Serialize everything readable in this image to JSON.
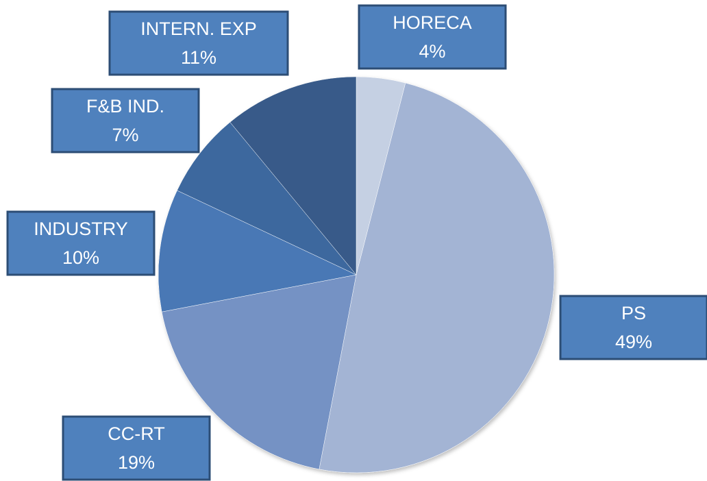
{
  "chart_data": {
    "type": "pie",
    "categories": [
      "HORECA",
      "PS",
      "CC-RT",
      "INDUSTRY",
      "F&B IND.",
      "INTERN. EXP"
    ],
    "values": [
      4,
      49,
      19,
      10,
      7,
      11
    ],
    "value_labels": [
      "4%",
      "49%",
      "19%",
      "10%",
      "7%",
      "11%"
    ],
    "colors": [
      "#c5d0e3",
      "#a3b4d4",
      "#7592c4",
      "#4a78b5",
      "#3d679e",
      "#375a89"
    ],
    "label_color": "#4f81bd"
  }
}
